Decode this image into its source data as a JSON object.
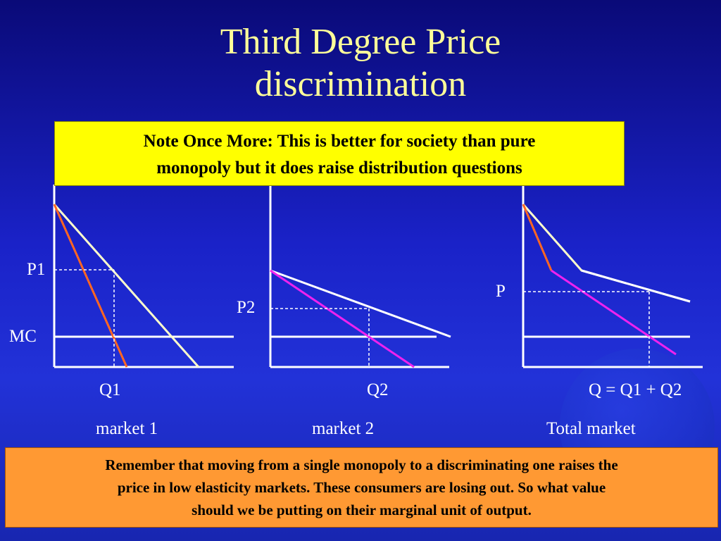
{
  "title": {
    "line1": "Third Degree Price",
    "line2": "discrimination"
  },
  "note": {
    "line1": "Note Once More: This is better for society than pure",
    "line2": "monopoly but it does raise distribution questions"
  },
  "labels": {
    "p1": "P1",
    "mc": "MC",
    "p2": "P2",
    "p": "P",
    "q1": "Q1",
    "q2": "Q2",
    "q_total": "Q = Q1 + Q2",
    "market1": "market 1",
    "market2": "market 2",
    "total_market": "Total market"
  },
  "remember": {
    "line1": "Remember that moving from a single monopoly to a discriminating one raises the",
    "line2": "price in low elasticity markets.  These consumers are losing out.  So what value",
    "line3": "should we be putting on their marginal unit of output."
  },
  "colors": {
    "background": "#1a22c8",
    "title_text": "#ffff99",
    "note_box": "#ffff00",
    "remember_box": "#ff9933",
    "demand_line": "#ffffcc",
    "mr_market1": "#ff6622",
    "mr_market2": "#ee22ee",
    "mc_line": "#ffffff"
  }
}
